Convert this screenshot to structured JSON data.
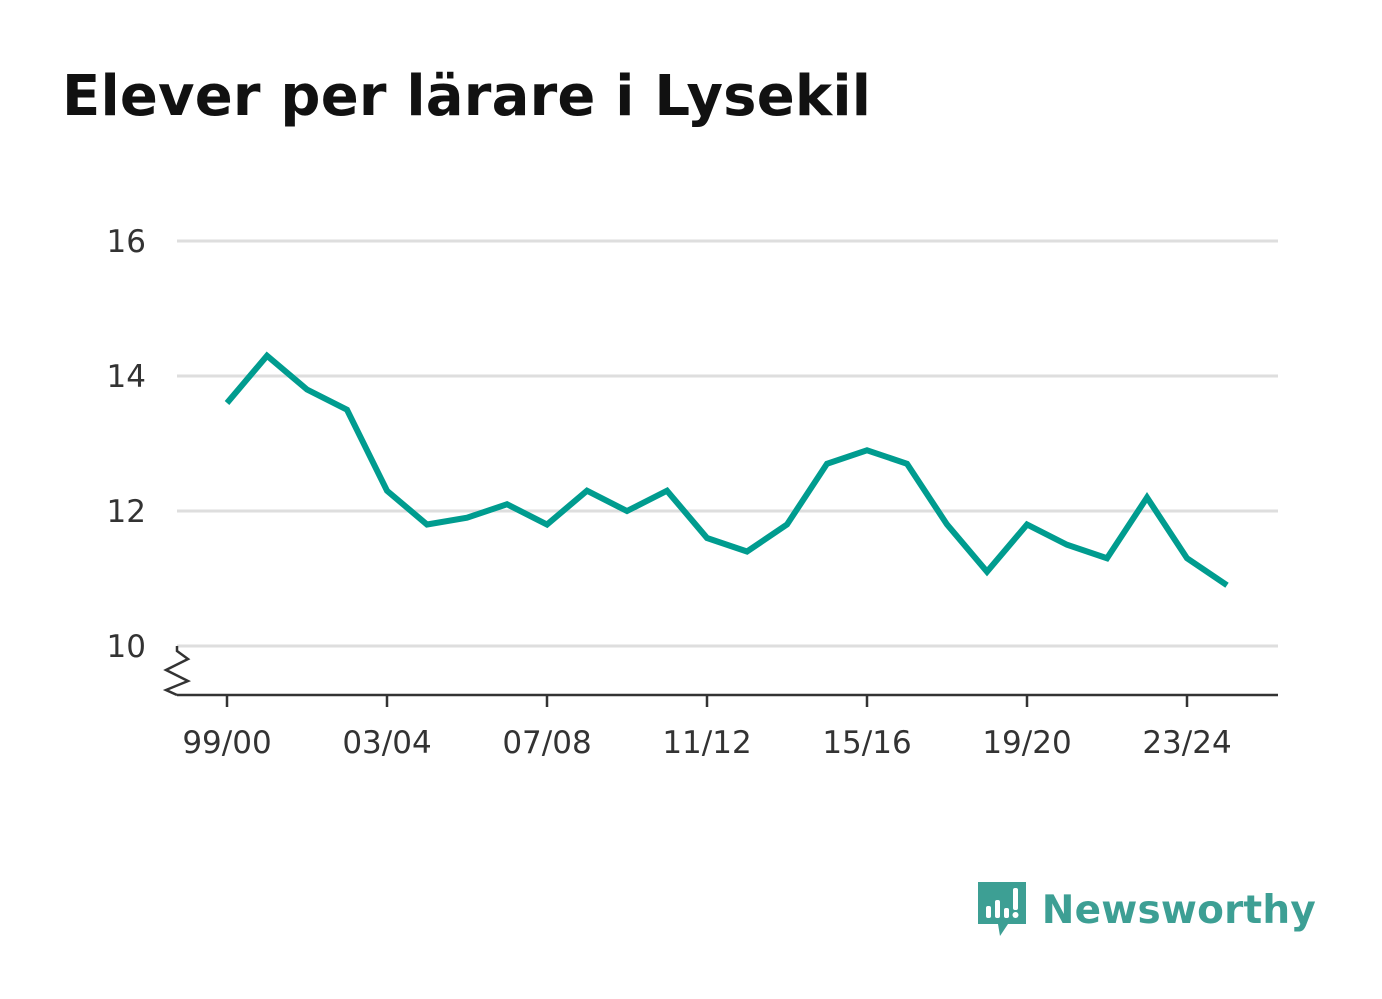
{
  "chart_data": {
    "type": "line",
    "title": "Elever per lärare i Lysekil",
    "xlabel": "",
    "ylabel": "",
    "x": [
      "99/00",
      "00/01",
      "01/02",
      "02/03",
      "03/04",
      "04/05",
      "05/06",
      "06/07",
      "07/08",
      "08/09",
      "09/10",
      "10/11",
      "11/12",
      "12/13",
      "13/14",
      "14/15",
      "15/16",
      "16/17",
      "17/18",
      "18/19",
      "19/20",
      "20/21",
      "21/22",
      "22/23",
      "23/24",
      "24/25"
    ],
    "x_tick_labels": [
      "99/00",
      "03/04",
      "07/08",
      "11/12",
      "15/16",
      "19/20",
      "23/24"
    ],
    "y_ticks": [
      "10",
      "12",
      "14",
      "16"
    ],
    "ylim": [
      9.3,
      16
    ],
    "y_axis_break": true,
    "grid": true,
    "series": [
      {
        "color": "#009c8f",
        "values": [
          13.6,
          14.3,
          13.8,
          13.5,
          12.3,
          11.8,
          11.9,
          12.1,
          11.8,
          12.3,
          12.0,
          12.3,
          11.6,
          11.4,
          11.8,
          12.7,
          12.9,
          12.7,
          11.8,
          11.1,
          11.8,
          11.5,
          11.3,
          12.2,
          11.3,
          10.9
        ]
      }
    ]
  },
  "brand": {
    "name": "Newsworthy",
    "icon": "newsworthy-logo-icon",
    "color": "#3d9f94"
  },
  "colors": {
    "grid": "#dedede",
    "axis": "#333333",
    "line": "#009c8f"
  }
}
